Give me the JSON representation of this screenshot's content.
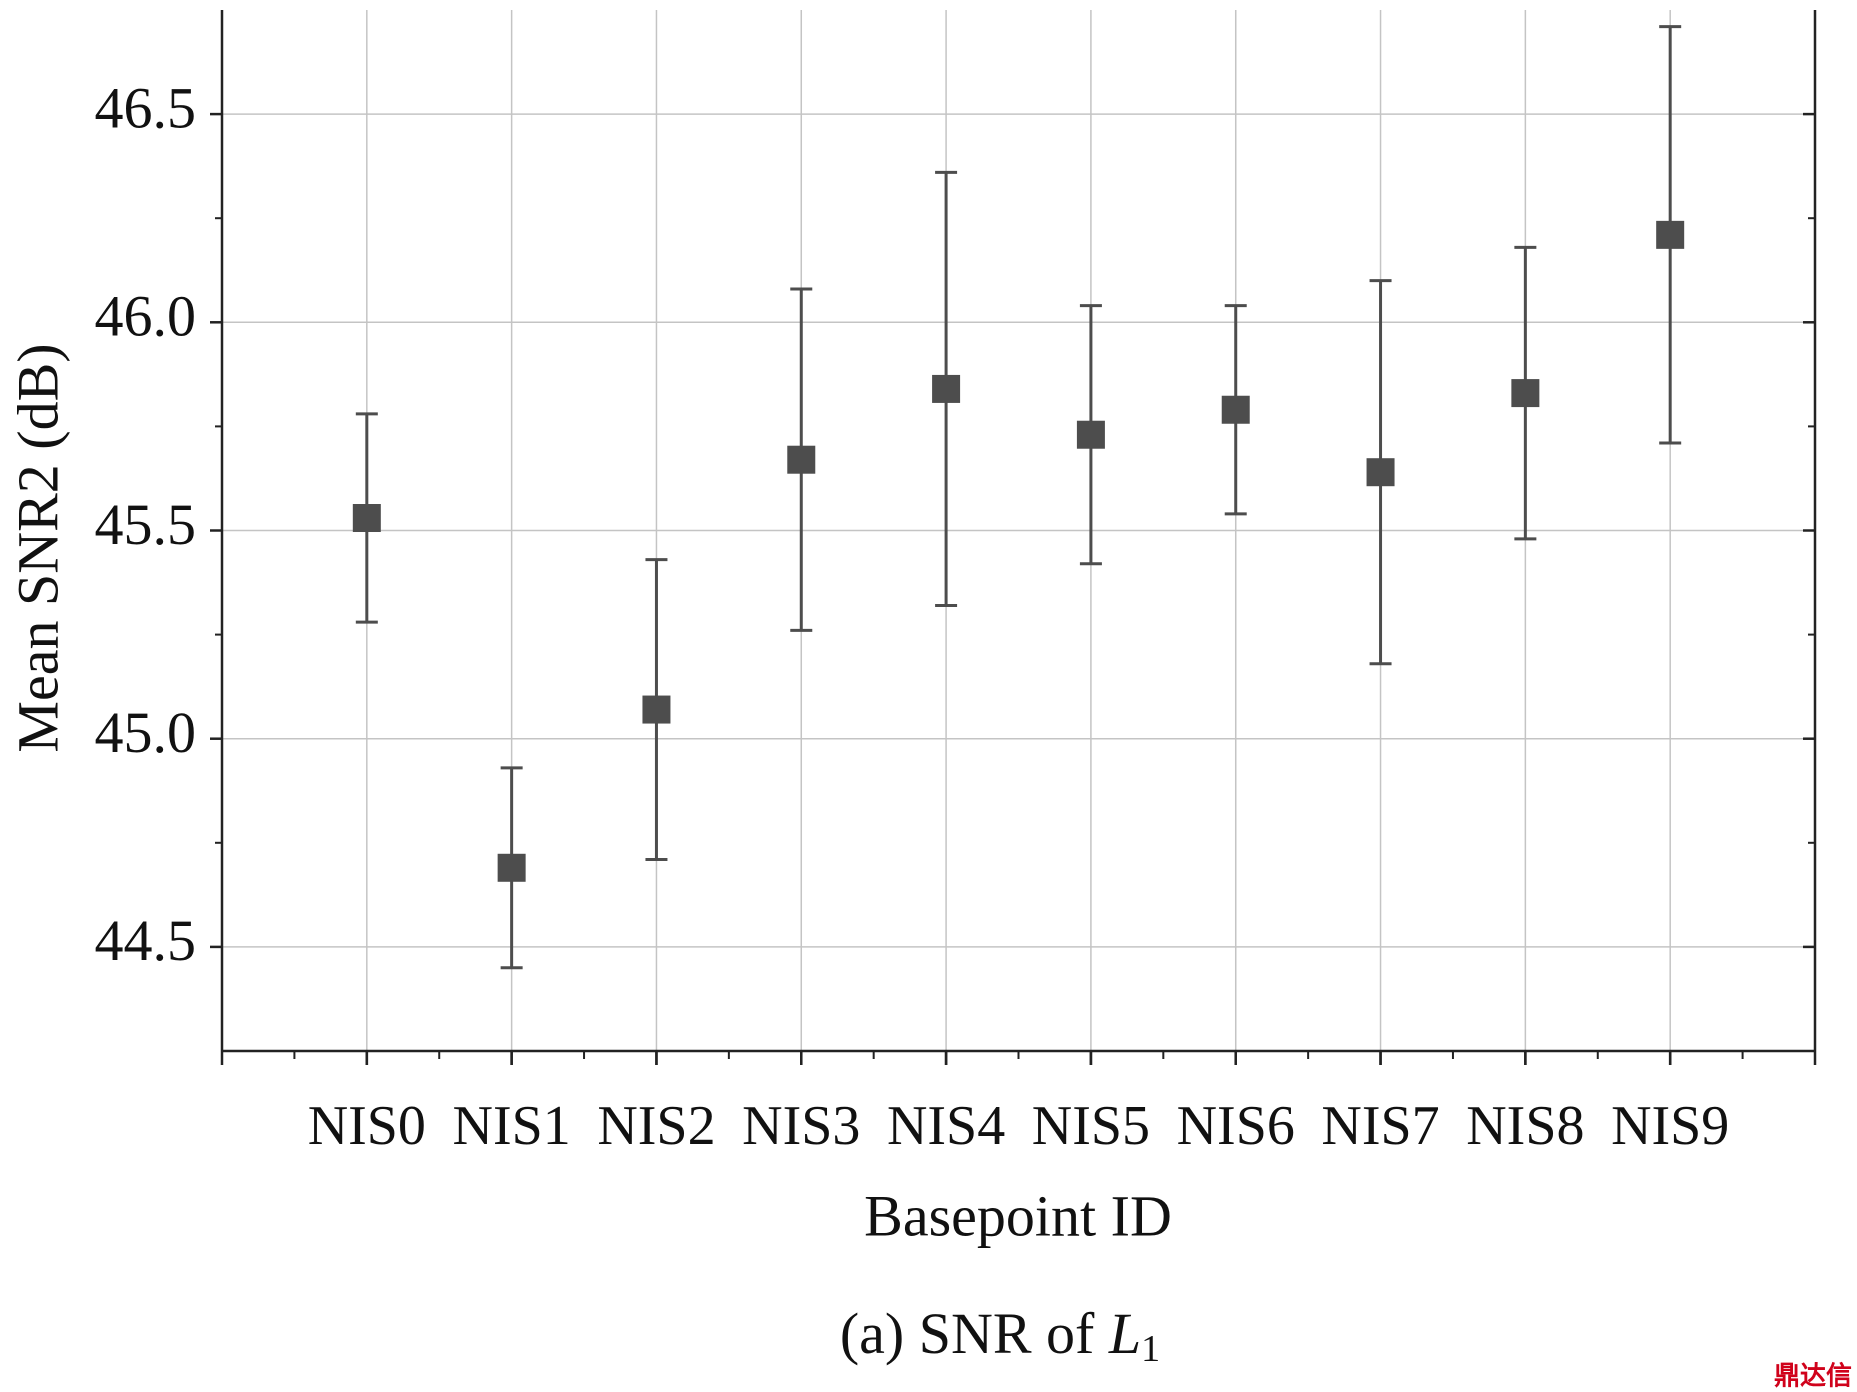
{
  "chart_data": {
    "type": "errorbar",
    "y_label": "Mean SNR2 (dB)",
    "x_label": "Basepoint ID",
    "caption": {
      "prefix": "(a) SNR of ",
      "variable": "L",
      "subscript": "1"
    },
    "watermark": "鼎达信",
    "categories": [
      "NIS0",
      "NIS1",
      "NIS2",
      "NIS3",
      "NIS4",
      "NIS5",
      "NIS6",
      "NIS7",
      "NIS8",
      "NIS9"
    ],
    "values": [
      45.53,
      44.69,
      45.07,
      45.67,
      45.84,
      45.73,
      45.79,
      45.64,
      45.83,
      46.21
    ],
    "errors": [
      0.25,
      0.24,
      0.36,
      0.41,
      0.52,
      0.31,
      0.25,
      0.46,
      0.35,
      0.5
    ],
    "color": "#4d4d4d",
    "ylim": [
      44.25,
      46.75
    ],
    "yticks": [
      {
        "value": 44.5,
        "label": "44.5"
      },
      {
        "value": 45,
        "label": "45.0"
      },
      {
        "value": 45.5,
        "label": "45.5"
      },
      {
        "value": 46,
        "label": "46.0"
      },
      {
        "value": 46.5,
        "label": "46.5"
      }
    ],
    "y_minor_ticks": [
      44.75,
      45.25,
      45.75,
      46.25
    ],
    "grid": true
  }
}
